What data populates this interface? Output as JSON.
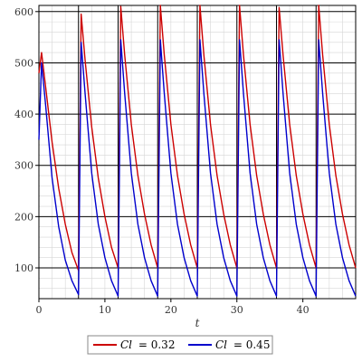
{
  "chart_data": {
    "type": "line",
    "title": "",
    "xlabel": "t",
    "ylabel": "",
    "xlim": [
      0,
      48
    ],
    "ylim": [
      40,
      612
    ],
    "grid": true,
    "legend_position": "bottom",
    "x_ticks": [
      0,
      10,
      20,
      30,
      40
    ],
    "y_ticks": [
      100,
      200,
      300,
      400,
      500,
      600
    ],
    "dose_period": 6,
    "series": [
      {
        "name": "Cl = 0.32",
        "legend_symbol": "Cl",
        "legend_value": "= 0.32",
        "color": "#cc0000",
        "cycles": [
          {
            "x": [
              0,
              0.4,
              1,
              2,
              3,
              4,
              5,
              6
            ],
            "y": [
              480,
              520,
              455,
              345,
              255,
              185,
              130,
              95
            ]
          },
          {
            "x": [
              6,
              6.4,
              7,
              8,
              9,
              10,
              11,
              12
            ],
            "y": [
              95,
              595,
              505,
              375,
              275,
              200,
              140,
              100
            ]
          },
          {
            "x": [
              12,
              12.4,
              13,
              14,
              15,
              16,
              17,
              18
            ],
            "y": [
              100,
              610,
              515,
              380,
              280,
              205,
              145,
              100
            ]
          },
          {
            "x": [
              18,
              18.4,
              19,
              20,
              21,
              22,
              23,
              24
            ],
            "y": [
              100,
              612,
              515,
              380,
              280,
              205,
              145,
              100
            ]
          },
          {
            "x": [
              24,
              24.4,
              25,
              26,
              27,
              28,
              29,
              30
            ],
            "y": [
              100,
              612,
              515,
              380,
              280,
              205,
              145,
              100
            ]
          },
          {
            "x": [
              30,
              30.4,
              31,
              32,
              33,
              34,
              35,
              36
            ],
            "y": [
              100,
              612,
              515,
              380,
              280,
              205,
              145,
              100
            ]
          },
          {
            "x": [
              36,
              36.4,
              37,
              38,
              39,
              40,
              41,
              42
            ],
            "y": [
              100,
              608,
              515,
              380,
              280,
              205,
              145,
              100
            ]
          },
          {
            "x": [
              42,
              42.4,
              43,
              44,
              45,
              46,
              47,
              48
            ],
            "y": [
              100,
              612,
              515,
              380,
              280,
              205,
              145,
              100
            ]
          }
        ]
      },
      {
        "name": "Cl = 0.45",
        "legend_symbol": "Cl",
        "legend_value": "= 0.45",
        "color": "#0000cc",
        "cycles": [
          {
            "x": [
              0,
              0.4,
              1,
              2,
              3,
              4,
              5,
              6
            ],
            "y": [
              350,
              500,
              420,
              275,
              180,
              115,
              75,
              48
            ]
          },
          {
            "x": [
              6,
              6.4,
              7,
              8,
              9,
              10,
              11,
              12
            ],
            "y": [
              48,
              540,
              440,
              285,
              185,
              120,
              75,
              45
            ]
          },
          {
            "x": [
              12,
              12.4,
              13,
              14,
              15,
              16,
              17,
              18
            ],
            "y": [
              45,
              545,
              440,
              285,
              185,
              120,
              75,
              45
            ]
          },
          {
            "x": [
              18,
              18.4,
              19,
              20,
              21,
              22,
              23,
              24
            ],
            "y": [
              45,
              545,
              440,
              285,
              185,
              120,
              75,
              45
            ]
          },
          {
            "x": [
              24,
              24.4,
              25,
              26,
              27,
              28,
              29,
              30
            ],
            "y": [
              45,
              545,
              440,
              285,
              185,
              120,
              75,
              45
            ]
          },
          {
            "x": [
              30,
              30.4,
              31,
              32,
              33,
              34,
              35,
              36
            ],
            "y": [
              45,
              545,
              440,
              285,
              185,
              120,
              75,
              45
            ]
          },
          {
            "x": [
              36,
              36.4,
              37,
              38,
              39,
              40,
              41,
              42
            ],
            "y": [
              45,
              545,
              440,
              285,
              185,
              120,
              75,
              45
            ]
          },
          {
            "x": [
              42,
              42.4,
              43,
              44,
              45,
              46,
              47,
              48
            ],
            "y": [
              45,
              545,
              440,
              285,
              185,
              120,
              75,
              45
            ]
          }
        ]
      }
    ]
  }
}
